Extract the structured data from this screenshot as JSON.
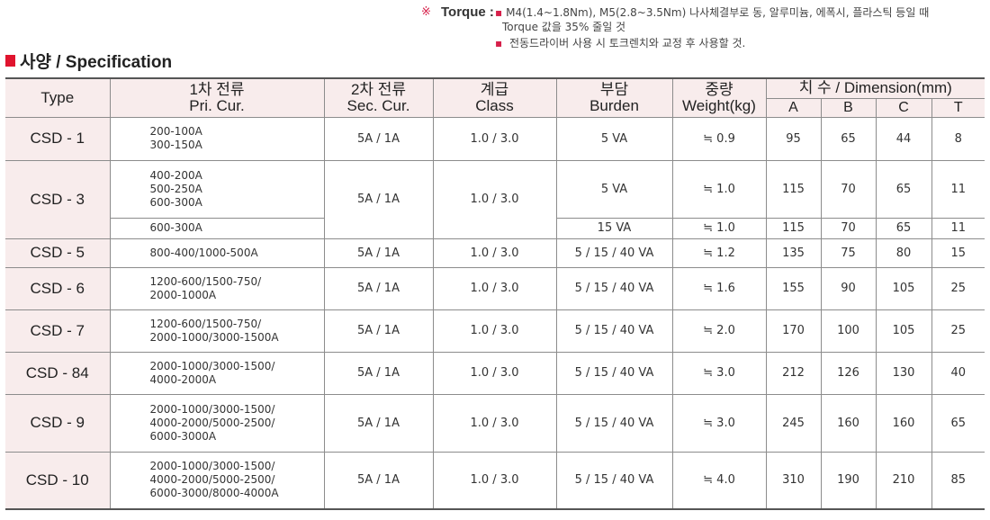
{
  "note": {
    "mark": "※",
    "label": "Torque :",
    "line1": "M4(1.4~1.8Nm), M5(2.8~3.5Nm) 나사체결부로 동, 알루미늄, 에폭시, 플라스틱 등일 때",
    "line1b": "Torque 값을 35% 줄일 것",
    "line2": "전동드라이버 사용 시 토크렌치와 교정 후 사용할 것."
  },
  "heading": "사양 / Specification",
  "headers": {
    "type": "Type",
    "pri_ko": "1차 전류",
    "pri_en": "Pri. Cur.",
    "sec_ko": "2차 전류",
    "sec_en": "Sec. Cur.",
    "class_ko": "계급",
    "class_en": "Class",
    "burden_ko": "부담",
    "burden_en": "Burden",
    "weight_ko": "중량",
    "weight_en": "Weight(kg)",
    "dimension": "치 수 / Dimension(mm)",
    "a": "A",
    "b": "B",
    "c": "C",
    "t": "T"
  },
  "rows": [
    {
      "type": "CSD - 1",
      "pri": [
        "200-100A",
        "300-150A"
      ],
      "sec": "5A / 1A",
      "class": "1.0 / 3.0",
      "burden": "5 VA",
      "weight": "≒ 0.9",
      "a": "95",
      "b": "65",
      "c": "44",
      "t": "8"
    },
    {
      "type": "CSD - 3",
      "pri": [
        "400-200A",
        "500-250A",
        "600-300A"
      ],
      "sec": "5A / 1A",
      "class": "1.0 / 3.0",
      "burden": "5 VA",
      "weight": "≒ 1.0",
      "a": "115",
      "b": "70",
      "c": "65",
      "t": "11",
      "sub": {
        "pri": [
          "600-300A"
        ],
        "burden": "15 VA",
        "weight": "≒ 1.0",
        "a": "115",
        "b": "70",
        "c": "65",
        "t": "11"
      }
    },
    {
      "type": "CSD - 5",
      "pri": [
        "800-400/1000-500A"
      ],
      "sec": "5A / 1A",
      "class": "1.0 / 3.0",
      "burden": "5 / 15 / 40 VA",
      "weight": "≒ 1.2",
      "a": "135",
      "b": "75",
      "c": "80",
      "t": "15"
    },
    {
      "type": "CSD - 6",
      "pri": [
        "1200-600/1500-750/",
        "2000-1000A"
      ],
      "sec": "5A / 1A",
      "class": "1.0 / 3.0",
      "burden": "5 / 15 / 40 VA",
      "weight": "≒ 1.6",
      "a": "155",
      "b": "90",
      "c": "105",
      "t": "25"
    },
    {
      "type": "CSD - 7",
      "pri": [
        "1200-600/1500-750/",
        "2000-1000/3000-1500A"
      ],
      "sec": "5A / 1A",
      "class": "1.0 / 3.0",
      "burden": "5 / 15 / 40 VA",
      "weight": "≒ 2.0",
      "a": "170",
      "b": "100",
      "c": "105",
      "t": "25"
    },
    {
      "type": "CSD - 84",
      "pri": [
        "2000-1000/3000-1500/",
        "4000-2000A"
      ],
      "sec": "5A / 1A",
      "class": "1.0 / 3.0",
      "burden": "5 / 15 / 40 VA",
      "weight": "≒ 3.0",
      "a": "212",
      "b": "126",
      "c": "130",
      "t": "40"
    },
    {
      "type": "CSD - 9",
      "pri": [
        "2000-1000/3000-1500/",
        "4000-2000/5000-2500/",
        "6000-3000A"
      ],
      "sec": "5A / 1A",
      "class": "1.0 / 3.0",
      "burden": "5 / 15 / 40 VA",
      "weight": "≒ 3.0",
      "a": "245",
      "b": "160",
      "c": "160",
      "t": "65"
    },
    {
      "type": "CSD - 10",
      "pri": [
        "2000-1000/3000-1500/",
        "4000-2000/5000-2500/",
        "6000-3000/8000-4000A"
      ],
      "sec": "5A / 1A",
      "class": "1.0 / 3.0",
      "burden": "5 / 15 / 40 VA",
      "weight": "≒ 4.0",
      "a": "310",
      "b": "190",
      "c": "210",
      "t": "85"
    }
  ]
}
